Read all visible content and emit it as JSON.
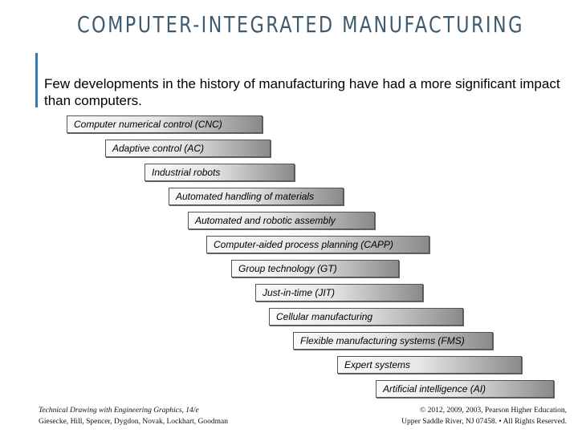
{
  "slide": {
    "title": "COMPUTER-INTEGRATED MANUFACTURING",
    "intro": "Few developments in the history of manufacturing have had a more significant impact than computers."
  },
  "steps": [
    "Computer numerical control (CNC)",
    "Adaptive control (AC)",
    "Industrial robots",
    "Automated handling of materials",
    "Automated and robotic assembly",
    "Computer-aided process planning (CAPP)",
    "Group technology (GT)",
    "Just-in-time (JIT)",
    "Cellular manufacturing",
    "Flexible manufacturing systems (FMS)",
    "Expert systems",
    "Artificial intelligence (AI)"
  ],
  "footer": {
    "book_title": "Technical Drawing with Engineering Graphics, 14/e",
    "authors": "Giesecke, Hill, Spencer, Dygdon, Novak, Lockhart, Goodman",
    "copyright_line1": "© 2012, 2009, 2003, Pearson Higher Education,",
    "copyright_line2": "Upper Saddle River, NJ 07458. • All Rights Reserved."
  }
}
